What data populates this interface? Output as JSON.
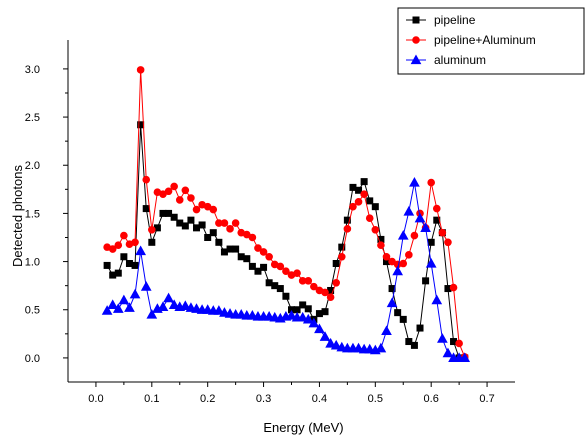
{
  "chart_data": {
    "type": "line",
    "xlabel": "Energy (MeV)",
    "ylabel": "Detected photons",
    "xlim": [
      -0.05,
      0.75
    ],
    "ylim": [
      -0.25,
      3.3
    ],
    "x_ticks": [
      "0.0",
      "0.1",
      "0.2",
      "0.3",
      "0.4",
      "0.5",
      "0.6",
      "0.7"
    ],
    "y_ticks": [
      "0.0",
      "0.5",
      "1.0",
      "1.5",
      "2.0",
      "2.5",
      "3.0"
    ],
    "legend_position": "top-right",
    "series": [
      {
        "name": "pipeline",
        "color": "#000000",
        "marker": "square",
        "x": [
          0.02,
          0.03,
          0.04,
          0.05,
          0.06,
          0.07,
          0.08,
          0.09,
          0.1,
          0.11,
          0.12,
          0.13,
          0.14,
          0.15,
          0.16,
          0.17,
          0.18,
          0.19,
          0.2,
          0.21,
          0.22,
          0.23,
          0.24,
          0.25,
          0.26,
          0.27,
          0.28,
          0.29,
          0.3,
          0.31,
          0.32,
          0.33,
          0.34,
          0.35,
          0.36,
          0.37,
          0.38,
          0.39,
          0.4,
          0.41,
          0.42,
          0.43,
          0.44,
          0.45,
          0.46,
          0.47,
          0.48,
          0.49,
          0.5,
          0.51,
          0.52,
          0.53,
          0.54,
          0.55,
          0.56,
          0.57,
          0.58,
          0.59,
          0.6,
          0.61,
          0.62,
          0.63,
          0.64,
          0.65,
          0.66
        ],
        "y": [
          0.96,
          0.86,
          0.88,
          1.05,
          0.98,
          0.96,
          2.42,
          1.55,
          1.2,
          1.35,
          1.5,
          1.5,
          1.46,
          1.4,
          1.37,
          1.43,
          1.35,
          1.38,
          1.25,
          1.3,
          1.2,
          1.1,
          1.13,
          1.13,
          1.05,
          1.03,
          0.95,
          0.9,
          0.94,
          0.78,
          0.75,
          0.72,
          0.64,
          0.5,
          0.5,
          0.55,
          0.51,
          0.4,
          0.46,
          0.48,
          0.7,
          0.98,
          1.15,
          1.43,
          1.77,
          1.74,
          1.83,
          1.63,
          1.57,
          1.23,
          1.0,
          0.72,
          0.47,
          0.4,
          0.17,
          0.13,
          0.31,
          0.8,
          1.2,
          1.43,
          1.3,
          0.72,
          0.17,
          0.0,
          0.0
        ]
      },
      {
        "name": "pipeline+Aluminum",
        "color": "#ff0000",
        "marker": "circle",
        "x": [
          0.02,
          0.03,
          0.04,
          0.05,
          0.06,
          0.07,
          0.08,
          0.09,
          0.1,
          0.11,
          0.12,
          0.13,
          0.14,
          0.15,
          0.16,
          0.17,
          0.18,
          0.19,
          0.2,
          0.21,
          0.22,
          0.23,
          0.24,
          0.25,
          0.26,
          0.27,
          0.28,
          0.29,
          0.3,
          0.31,
          0.32,
          0.33,
          0.34,
          0.35,
          0.36,
          0.37,
          0.38,
          0.39,
          0.4,
          0.41,
          0.42,
          0.43,
          0.44,
          0.45,
          0.46,
          0.47,
          0.48,
          0.49,
          0.5,
          0.51,
          0.52,
          0.53,
          0.54,
          0.55,
          0.56,
          0.57,
          0.58,
          0.59,
          0.6,
          0.61,
          0.62,
          0.63,
          0.64,
          0.65,
          0.66
        ],
        "y": [
          1.15,
          1.13,
          1.17,
          1.27,
          1.18,
          1.2,
          2.99,
          1.85,
          1.33,
          1.72,
          1.7,
          1.73,
          1.78,
          1.64,
          1.74,
          1.66,
          1.54,
          1.59,
          1.57,
          1.54,
          1.4,
          1.4,
          1.34,
          1.4,
          1.3,
          1.28,
          1.25,
          1.14,
          1.1,
          1.05,
          0.97,
          0.95,
          0.9,
          0.86,
          0.88,
          0.8,
          0.8,
          0.74,
          0.7,
          0.68,
          0.63,
          0.78,
          1.05,
          1.34,
          1.57,
          1.62,
          1.7,
          1.45,
          1.33,
          1.17,
          1.05,
          1.0,
          0.97,
          0.98,
          1.07,
          1.27,
          1.5,
          1.35,
          1.82,
          1.55,
          1.3,
          1.2,
          0.73,
          0.15,
          0.01
        ]
      },
      {
        "name": "aluminum",
        "color": "#0000ff",
        "marker": "triangle",
        "x": [
          0.02,
          0.03,
          0.04,
          0.05,
          0.06,
          0.07,
          0.08,
          0.09,
          0.1,
          0.11,
          0.12,
          0.13,
          0.14,
          0.15,
          0.16,
          0.17,
          0.18,
          0.19,
          0.2,
          0.21,
          0.22,
          0.23,
          0.24,
          0.25,
          0.26,
          0.27,
          0.28,
          0.29,
          0.3,
          0.31,
          0.32,
          0.33,
          0.34,
          0.35,
          0.36,
          0.37,
          0.38,
          0.39,
          0.4,
          0.41,
          0.42,
          0.43,
          0.44,
          0.45,
          0.46,
          0.47,
          0.48,
          0.49,
          0.5,
          0.51,
          0.52,
          0.53,
          0.54,
          0.55,
          0.56,
          0.57,
          0.58,
          0.59,
          0.6,
          0.61,
          0.62,
          0.63,
          0.64,
          0.65,
          0.66
        ],
        "y": [
          0.49,
          0.55,
          0.51,
          0.6,
          0.52,
          0.66,
          1.11,
          0.74,
          0.45,
          0.51,
          0.53,
          0.62,
          0.55,
          0.53,
          0.54,
          0.52,
          0.51,
          0.5,
          0.5,
          0.49,
          0.49,
          0.47,
          0.46,
          0.45,
          0.45,
          0.44,
          0.44,
          0.43,
          0.43,
          0.43,
          0.42,
          0.41,
          0.43,
          0.44,
          0.42,
          0.42,
          0.4,
          0.36,
          0.3,
          0.22,
          0.15,
          0.13,
          0.11,
          0.1,
          0.1,
          0.1,
          0.09,
          0.09,
          0.08,
          0.1,
          0.28,
          0.57,
          0.9,
          1.27,
          1.52,
          1.82,
          1.45,
          1.35,
          0.98,
          0.6,
          0.2,
          0.05,
          0.0,
          0.0,
          0.0
        ]
      }
    ]
  }
}
